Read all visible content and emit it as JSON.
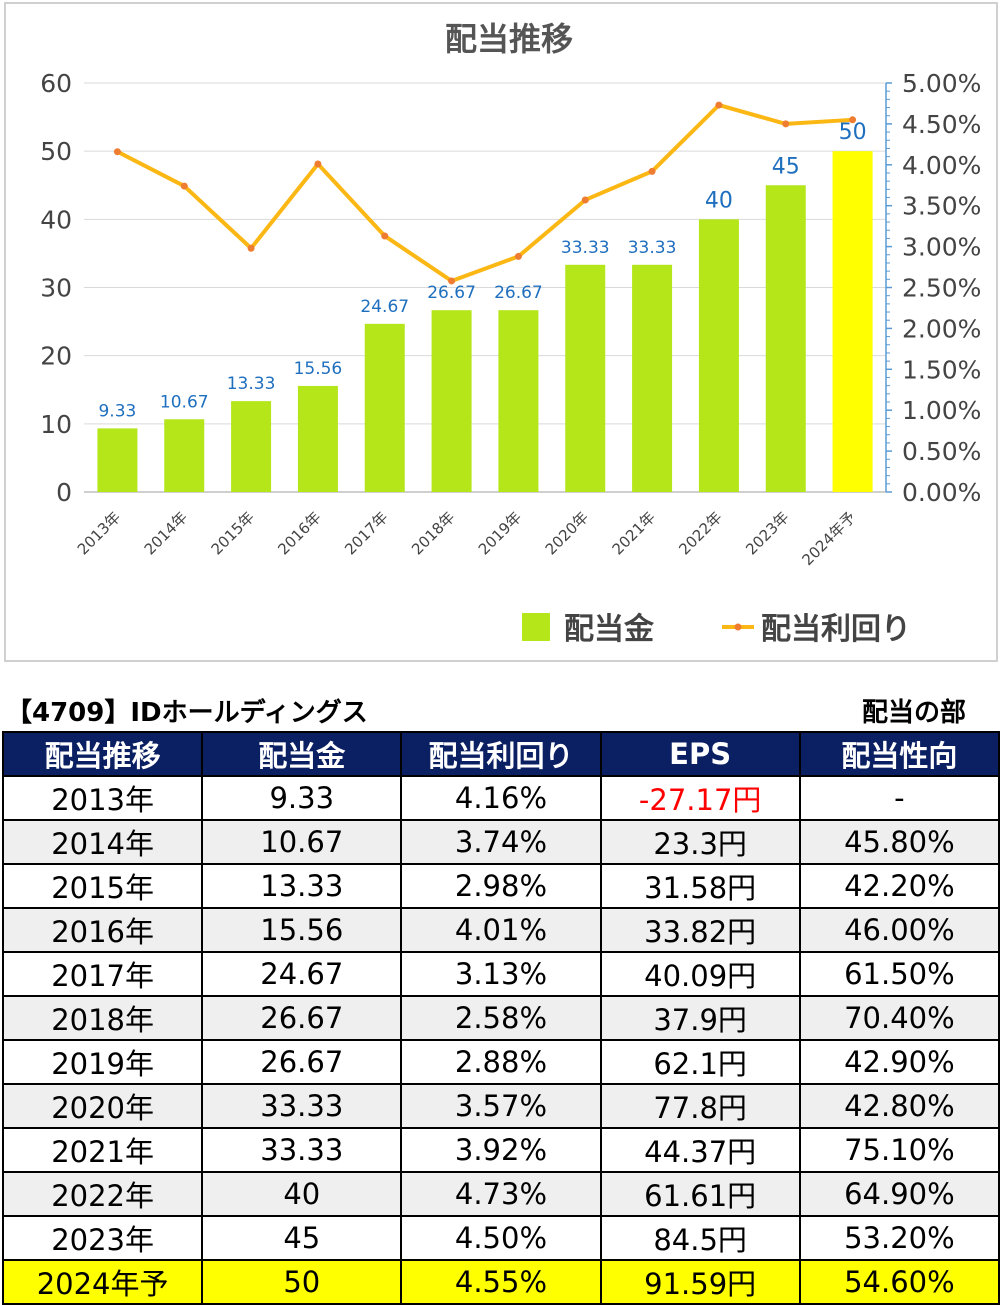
{
  "chart_data": {
    "type": "bar",
    "title": "配当推移",
    "categories": [
      "2013年",
      "2014年",
      "2015年",
      "2016年",
      "2017年",
      "2018年",
      "2019年",
      "2020年",
      "2021年",
      "2022年",
      "2023年",
      "2024年予"
    ],
    "series": [
      {
        "name": "配当金",
        "type": "bar",
        "axis": "left",
        "values": [
          9.33,
          10.67,
          13.33,
          15.56,
          24.67,
          26.67,
          26.67,
          33.33,
          33.33,
          40,
          45,
          50
        ],
        "labels": [
          "9.33",
          "10.67",
          "13.33",
          "15.56",
          "24.67",
          "26.67",
          "26.67",
          "33.33",
          "33.33",
          "40",
          "45",
          "50"
        ],
        "color": "#b4e61a",
        "highlight_color": "#ffff00"
      },
      {
        "name": "配当利回り",
        "type": "line",
        "axis": "right",
        "values": [
          4.16,
          3.74,
          2.98,
          4.01,
          3.13,
          2.58,
          2.88,
          3.57,
          3.92,
          4.73,
          4.5,
          4.55
        ],
        "color": "#fbb714",
        "marker_color": "#ef7d31"
      }
    ],
    "ylim": [
      0,
      60
    ],
    "yticks": [
      "0",
      "10",
      "20",
      "30",
      "40",
      "50",
      "60"
    ],
    "y2lim": [
      0,
      5
    ],
    "y2ticks": [
      "0.00%",
      "0.50%",
      "1.00%",
      "1.50%",
      "2.00%",
      "2.50%",
      "3.00%",
      "3.50%",
      "4.00%",
      "4.50%",
      "5.00%"
    ],
    "grid": true,
    "legend_position": "bottom-right"
  },
  "colors": {
    "label_blue": "#1f6fbf",
    "header_bg": "#0b1f63",
    "negative": "#ff0000"
  },
  "company_title": "【4709】IDホールディングス",
  "section_title": "配当の部",
  "table": {
    "headers": [
      "配当推移",
      "配当金",
      "配当利回り",
      "EPS",
      "配当性向"
    ],
    "rows": [
      [
        "2013年",
        "9.33",
        "4.16%",
        "-27.17円",
        "-"
      ],
      [
        "2014年",
        "10.67",
        "3.74%",
        "23.3円",
        "45.80%"
      ],
      [
        "2015年",
        "13.33",
        "2.98%",
        "31.58円",
        "42.20%"
      ],
      [
        "2016年",
        "15.56",
        "4.01%",
        "33.82円",
        "46.00%"
      ],
      [
        "2017年",
        "24.67",
        "3.13%",
        "40.09円",
        "61.50%"
      ],
      [
        "2018年",
        "26.67",
        "2.58%",
        "37.9円",
        "70.40%"
      ],
      [
        "2019年",
        "26.67",
        "2.88%",
        "62.1円",
        "42.90%"
      ],
      [
        "2020年",
        "33.33",
        "3.57%",
        "77.8円",
        "42.80%"
      ],
      [
        "2021年",
        "33.33",
        "3.92%",
        "44.37円",
        "75.10%"
      ],
      [
        "2022年",
        "40",
        "4.73%",
        "61.61円",
        "64.90%"
      ],
      [
        "2023年",
        "45",
        "4.50%",
        "84.5円",
        "53.20%"
      ],
      [
        "2024年予",
        "50",
        "4.55%",
        "91.59円",
        "54.60%"
      ]
    ]
  }
}
